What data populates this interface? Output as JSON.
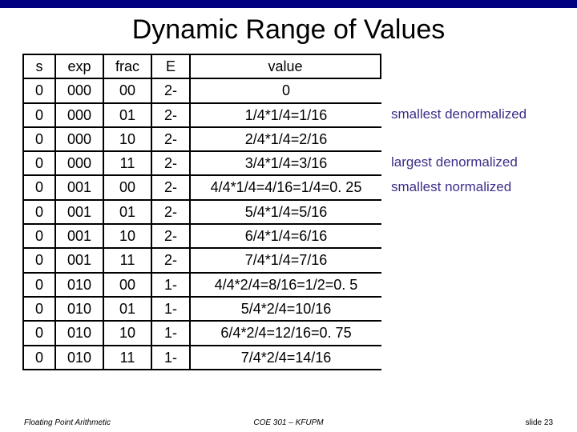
{
  "title": "Dynamic Range of Values",
  "header": {
    "s": "s",
    "exp": "exp",
    "frac": "frac",
    "E": "E",
    "value": "value"
  },
  "rows": [
    {
      "s": "0",
      "exp": "000",
      "frac": "00",
      "E": "2-",
      "value": "0",
      "note": ""
    },
    {
      "s": "0",
      "exp": "000",
      "frac": "01",
      "E": "2-",
      "value": "1/4*1/4=1/16",
      "note": "smallest denormalized"
    },
    {
      "s": "0",
      "exp": "000",
      "frac": "10",
      "E": "2-",
      "value": "2/4*1/4=2/16",
      "note": ""
    },
    {
      "s": "0",
      "exp": "000",
      "frac": "11",
      "E": "2-",
      "value": "3/4*1/4=3/16",
      "note": "largest denormalized"
    },
    {
      "s": "0",
      "exp": "001",
      "frac": "00",
      "E": "2-",
      "value": "4/4*1/4=4/16=1/4=0. 25",
      "note": "smallest normalized"
    },
    {
      "s": "0",
      "exp": "001",
      "frac": "01",
      "E": "2-",
      "value": "5/4*1/4=5/16",
      "note": ""
    },
    {
      "s": "0",
      "exp": "001",
      "frac": "10",
      "E": "2-",
      "value": "6/4*1/4=6/16",
      "note": ""
    },
    {
      "s": "0",
      "exp": "001",
      "frac": "11",
      "E": "2-",
      "value": "7/4*1/4=7/16",
      "note": ""
    },
    {
      "s": "0",
      "exp": "010",
      "frac": "00",
      "E": "1-",
      "value": "4/4*2/4=8/16=1/2=0. 5",
      "note": ""
    },
    {
      "s": "0",
      "exp": "010",
      "frac": "01",
      "E": "1-",
      "value": "5/4*2/4=10/16",
      "note": ""
    },
    {
      "s": "0",
      "exp": "010",
      "frac": "10",
      "E": "1-",
      "value": "6/4*2/4=12/16=0. 75",
      "note": ""
    },
    {
      "s": "0",
      "exp": "010",
      "frac": "11",
      "E": "1-",
      "value": "7/4*2/4=14/16",
      "note": ""
    }
  ],
  "footer": {
    "left": "Floating Point Arithmetic",
    "center": "COE 301 – KFUPM",
    "right": "slide 23"
  },
  "colors": {
    "title_bar": "#000080",
    "note_text": "#3b2f8a",
    "border": "#000000",
    "background": "#ffffff"
  }
}
